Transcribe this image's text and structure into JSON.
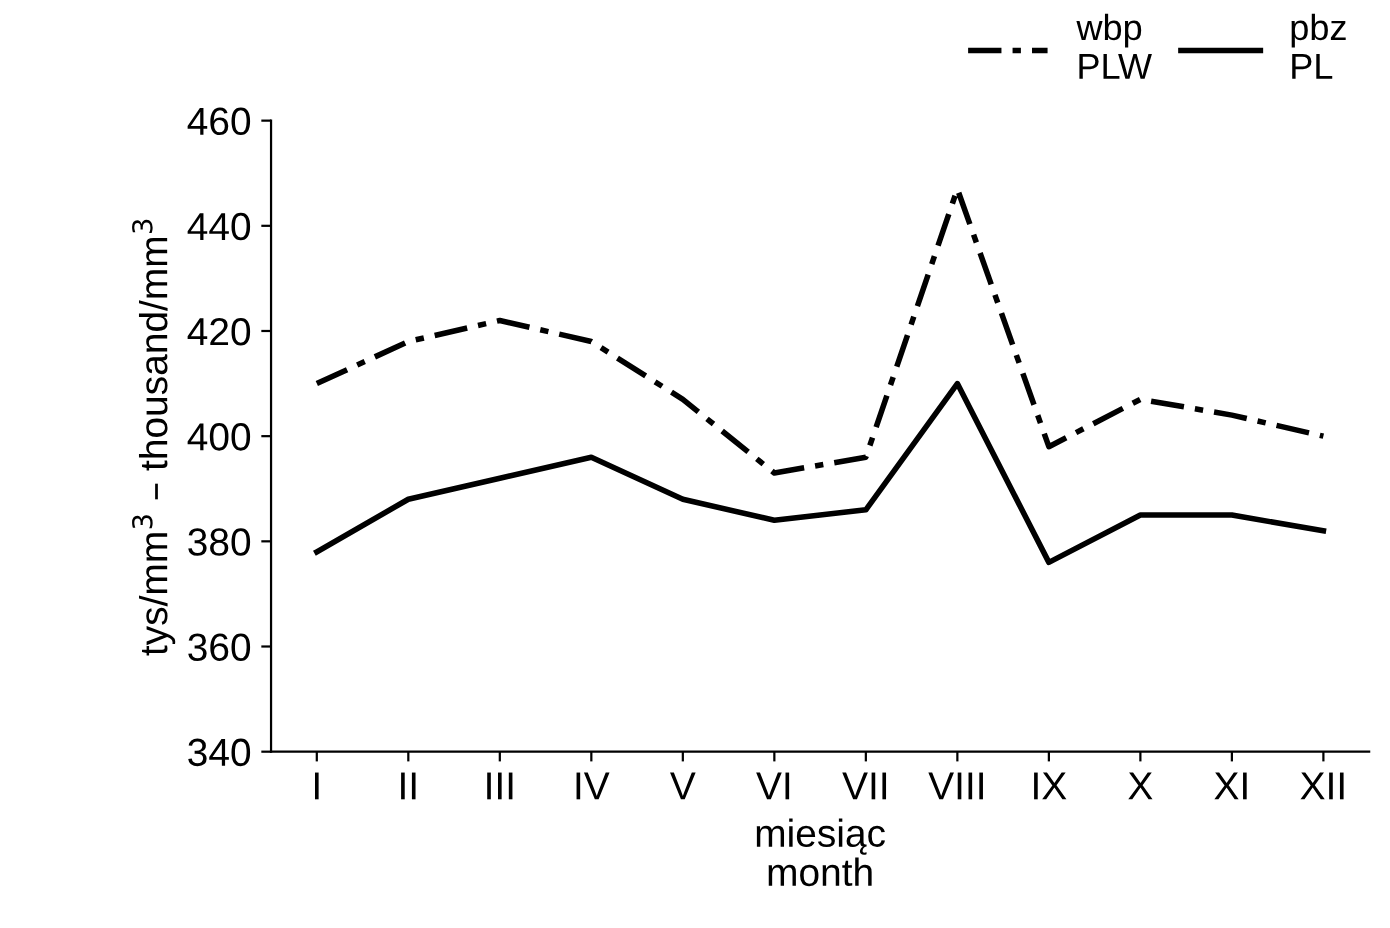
{
  "chart_data": {
    "type": "line",
    "xlabel": "miesiąc\nmonth",
    "ylabel": "tys/mm$^{3}$ – thousand/mm$^{3}$",
    "categories": [
      "I",
      "II",
      "III",
      "IV",
      "V",
      "VI",
      "VII",
      "VIII",
      "IX",
      "X",
      "XI",
      "XII"
    ],
    "series": [
      {
        "name": "wbp\nPLW",
        "color": "#000000",
        "line_style": "dashed",
        "values": [
          410,
          418,
          422,
          418,
          407,
          393,
          396,
          447,
          398,
          407,
          404,
          400
        ]
      },
      {
        "name": "pbz\nPL",
        "color": "#000000",
        "line_style": "solid",
        "values": [
          378,
          388,
          392,
          396,
          388,
          384,
          386,
          410,
          376,
          385,
          385,
          382
        ]
      }
    ],
    "ylim": [
      340,
      460
    ],
    "yticks": [
      340,
      360,
      380,
      400,
      420,
      440,
      460
    ],
    "grid": false,
    "legend": "top right",
    "marker": "none"
  }
}
